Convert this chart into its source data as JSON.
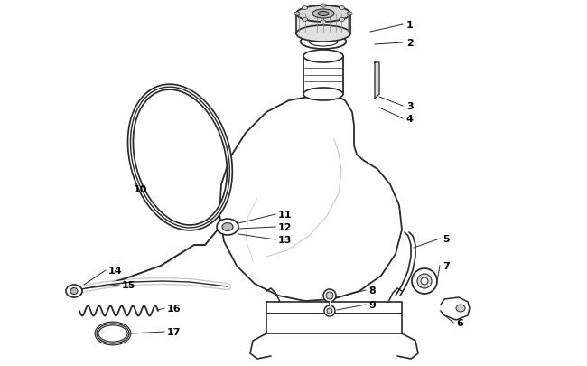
{
  "background_color": "#ffffff",
  "line_color": "#2a2a2a",
  "label_color": "#000000",
  "fig_w": 6.5,
  "fig_h": 4.06,
  "dpi": 100
}
